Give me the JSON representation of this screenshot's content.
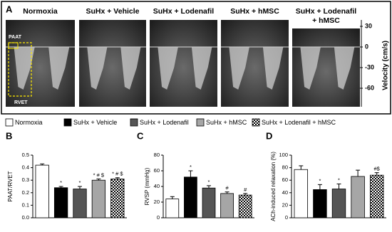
{
  "panel_a": {
    "label": "A",
    "titles": [
      [
        "Normoxia"
      ],
      [
        "SuHx + Vehicle"
      ],
      [
        "SuHx + Lodenafil"
      ],
      [
        "SuHx + hMSC"
      ],
      [
        "SuHx + Lodenafil",
        "+ hMSC"
      ]
    ],
    "ylabel": "Velocity (cm/s)",
    "ylim": [
      40,
      -85
    ],
    "yticks": [
      30,
      0,
      -30,
      -60
    ],
    "annotations": [
      "PAAT",
      "RVET"
    ]
  },
  "legend": [
    {
      "name": "Normoxia",
      "fill": "#ffffff"
    },
    {
      "name": "SuHx + Vehicle",
      "fill": "#000000"
    },
    {
      "name": "SuHx + Lodenafil",
      "fill": "#555555"
    },
    {
      "name": "SuHx + hMSC",
      "fill": "#a6a6a6"
    },
    {
      "name": "SuHx + Lodenafil + hMSC",
      "fill": "checker"
    }
  ],
  "chart_data": [
    {
      "type": "bar",
      "panel_label": "B",
      "ylabel": "PAAT/RVET",
      "values": [
        0.42,
        0.24,
        0.23,
        0.3,
        0.31
      ],
      "errors": [
        0.01,
        0.01,
        0.02,
        0.01,
        0.01
      ],
      "annotations": [
        null,
        "*",
        "*",
        "* # $",
        "* # $"
      ],
      "ylim": [
        0,
        0.5
      ],
      "yticks": [
        {
          "value": 0,
          "label": "0.0"
        },
        0.1,
        0.2,
        0.3,
        0.4,
        0.5
      ]
    },
    {
      "type": "bar",
      "panel_label": "C",
      "ylabel": "RVSP (mmHg)",
      "values": [
        24,
        52,
        38,
        31,
        29
      ],
      "errors": [
        3,
        8,
        3,
        2,
        2
      ],
      "annotations": [
        null,
        "*",
        "*",
        "#",
        "#"
      ],
      "ylim": [
        0,
        80
      ],
      "yticks": [
        0,
        20,
        40,
        60,
        80
      ]
    },
    {
      "type": "bar",
      "panel_label": "D",
      "ylabel": "ACh-induced relaxation (%)",
      "values": [
        77,
        45,
        46,
        66,
        68
      ],
      "errors": [
        6,
        8,
        8,
        10,
        4
      ],
      "annotations": [
        null,
        "*",
        "*",
        null,
        "#$"
      ],
      "ylim": [
        0,
        100
      ],
      "yticks": [
        0,
        20,
        40,
        60,
        80,
        100
      ]
    }
  ]
}
